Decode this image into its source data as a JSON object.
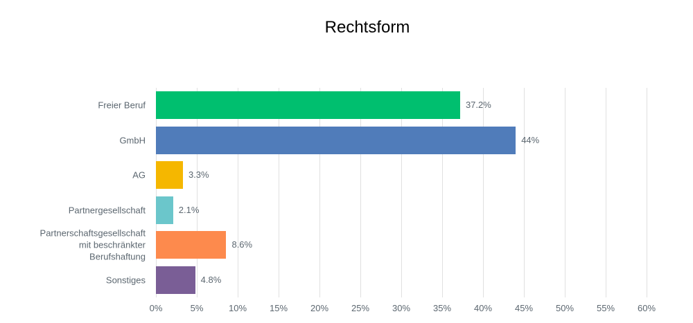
{
  "chart_data": {
    "type": "bar",
    "orientation": "horizontal",
    "title": "Rechtsform",
    "categories": [
      "Freier Beruf",
      "GmbH",
      "AG",
      "Partnergesellschaft",
      "Partnerschaftsgesellschaft\nmit beschränkter\nBerufshaftung",
      "Sonstiges"
    ],
    "values": [
      37.2,
      44,
      3.3,
      2.1,
      8.6,
      4.8
    ],
    "value_labels": [
      "37.2%",
      "44%",
      "3.3%",
      "2.1%",
      "8.6%",
      "4.8%"
    ],
    "bar_colors": [
      "#00bf6f",
      "#507cba",
      "#f5b700",
      "#6bc6cb",
      "#fd8a4d",
      "#7a5e96"
    ],
    "xlabel": "",
    "ylabel": "",
    "xlim": [
      0,
      60
    ],
    "tick_step": 5,
    "tick_labels": [
      "0%",
      "5%",
      "10%",
      "15%",
      "20%",
      "25%",
      "30%",
      "35%",
      "40%",
      "45%",
      "50%",
      "55%",
      "60%"
    ],
    "grid": true,
    "legend": "none",
    "colors": {
      "title_text": "#000000",
      "label_text": "#5c6770",
      "gridline": "#e0e0e0",
      "background": "#ffffff"
    }
  }
}
